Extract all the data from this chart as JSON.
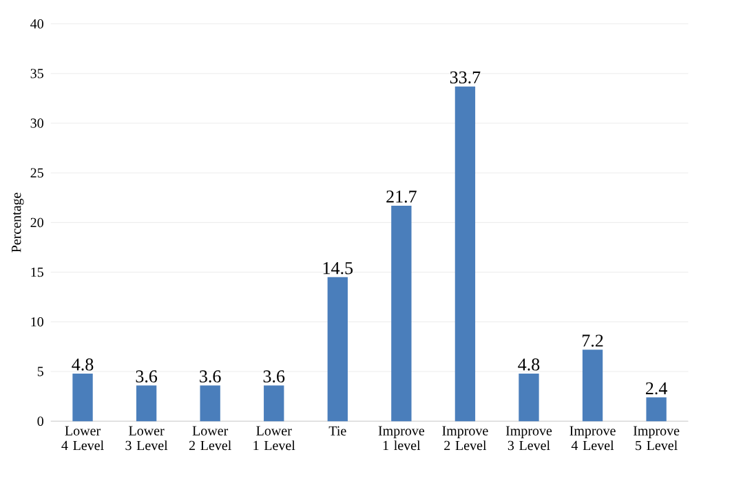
{
  "chart_data": {
    "type": "bar",
    "ylabel": "Percentage",
    "categories": [
      "Lower 4 Level",
      "Lower 3 Level",
      "Lower 2 Level",
      "Lower 1 Level",
      "Tie",
      "Improve 1 level",
      "Improve 2 Level",
      "Improve 3 Level",
      "Improve 4 Level",
      "Improve 5 Level"
    ],
    "values": [
      4.8,
      3.6,
      3.6,
      3.6,
      14.5,
      21.7,
      33.7,
      4.8,
      7.2,
      2.4
    ],
    "color": "#4a7ebb",
    "ylim": [
      0,
      40
    ],
    "yticks": [
      0,
      5,
      10,
      15,
      20,
      25,
      30,
      35,
      40
    ],
    "grid": "y",
    "data_labels": true
  }
}
